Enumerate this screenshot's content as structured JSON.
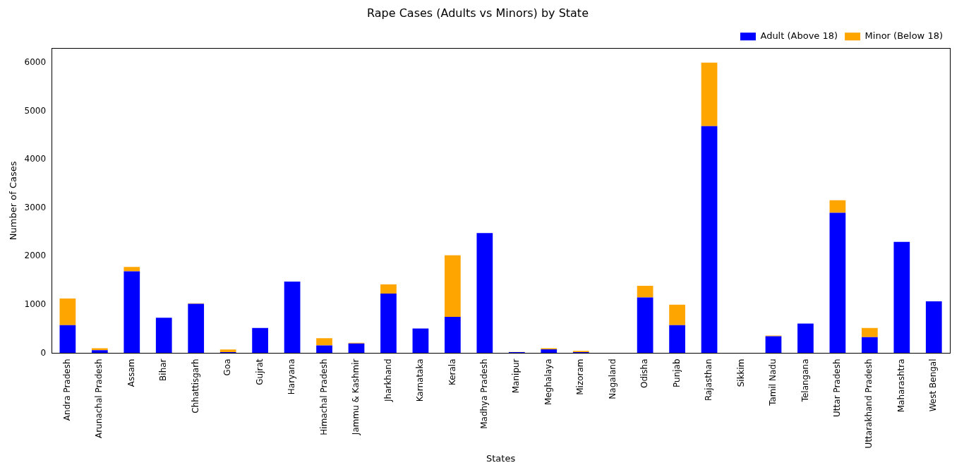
{
  "chart_data": {
    "type": "bar",
    "title": "Rape Cases (Adults vs Minors) by State",
    "x_label": "States",
    "y_label": "Number of Cases",
    "categories": [
      "Andra Pradesh",
      "Arunachal Pradesh",
      "Assam",
      "Bihar",
      "Chhattisgarh",
      "Goa",
      "Gujrat",
      "Haryana",
      "Himachal Pradesh",
      "Jammu & Kashmir",
      "Jharkhand",
      "Karnataka",
      "Kerala",
      "Madhya Pradesh",
      "Manipur",
      "Meghalaya",
      "Mizoram",
      "Nagaland",
      "Odisha",
      "Punjab",
      "Rajasthan",
      "Sikkim",
      "Tamil Nadu",
      "Telangana",
      "Uttar Pradesh",
      "Uttarakhand Pradesh",
      "Maharashtra",
      "West Bengal"
    ],
    "series": [
      {
        "name": "Adult (Above 18)",
        "color": "#0000ff",
        "values": [
          580,
          60,
          1690,
          730,
          1020,
          20,
          520,
          1480,
          160,
          200,
          1230,
          510,
          750,
          2480,
          20,
          80,
          20,
          5,
          1150,
          580,
          4690,
          0,
          350,
          610,
          2900,
          330,
          2300,
          1070
        ]
      },
      {
        "name": "Minor (Below 18)",
        "color": "#ffa500",
        "values": [
          550,
          40,
          90,
          0,
          10,
          55,
          0,
          0,
          150,
          15,
          190,
          0,
          1270,
          0,
          5,
          20,
          25,
          0,
          240,
          420,
          1310,
          0,
          15,
          0,
          260,
          190,
          0,
          0
        ]
      }
    ],
    "stacked": true,
    "grid": false,
    "legend": "upper right",
    "ylim": [
      0,
      6300
    ],
    "yticks": [
      0,
      1000,
      2000,
      3000,
      4000,
      5000,
      6000
    ]
  }
}
